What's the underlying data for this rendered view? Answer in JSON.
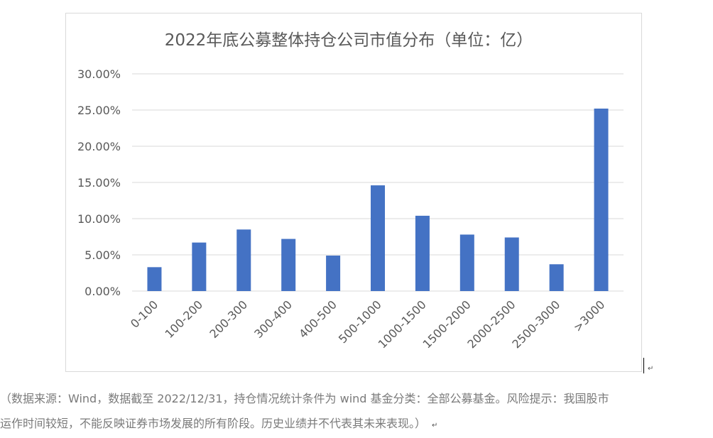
{
  "chart_data": {
    "type": "bar",
    "title": "2022年底公募整体持仓公司市值分布（单位：亿）",
    "categories": [
      "0-100",
      "100-200",
      "200-300",
      "300-400",
      "400-500",
      "500-1000",
      "1000-1500",
      "1500-2000",
      "2000-2500",
      "2500-3000",
      ">3000"
    ],
    "values": [
      3.3,
      6.7,
      8.5,
      7.2,
      4.9,
      14.6,
      10.4,
      7.8,
      7.4,
      3.7,
      25.2
    ],
    "ylim": [
      0,
      30
    ],
    "yticks": [
      "0.00%",
      "5.00%",
      "10.00%",
      "15.00%",
      "20.00%",
      "25.00%",
      "30.00%"
    ],
    "ytick_values": [
      0,
      5,
      10,
      15,
      20,
      25,
      30
    ],
    "grid": true,
    "legend": "none",
    "bar_color": "#4472c4"
  },
  "note": {
    "line1": "（数据来源：Wind，数据截至 2022/12/31，持仓情况统计条件为 wind 基金分类：全部公募基金。风险提示：我国股市",
    "line2": "运作时间较短，不能反映证券市场发展的所有阶段。历史业绩并不代表其未来表现。）"
  },
  "marks": {
    "return": "↵"
  }
}
